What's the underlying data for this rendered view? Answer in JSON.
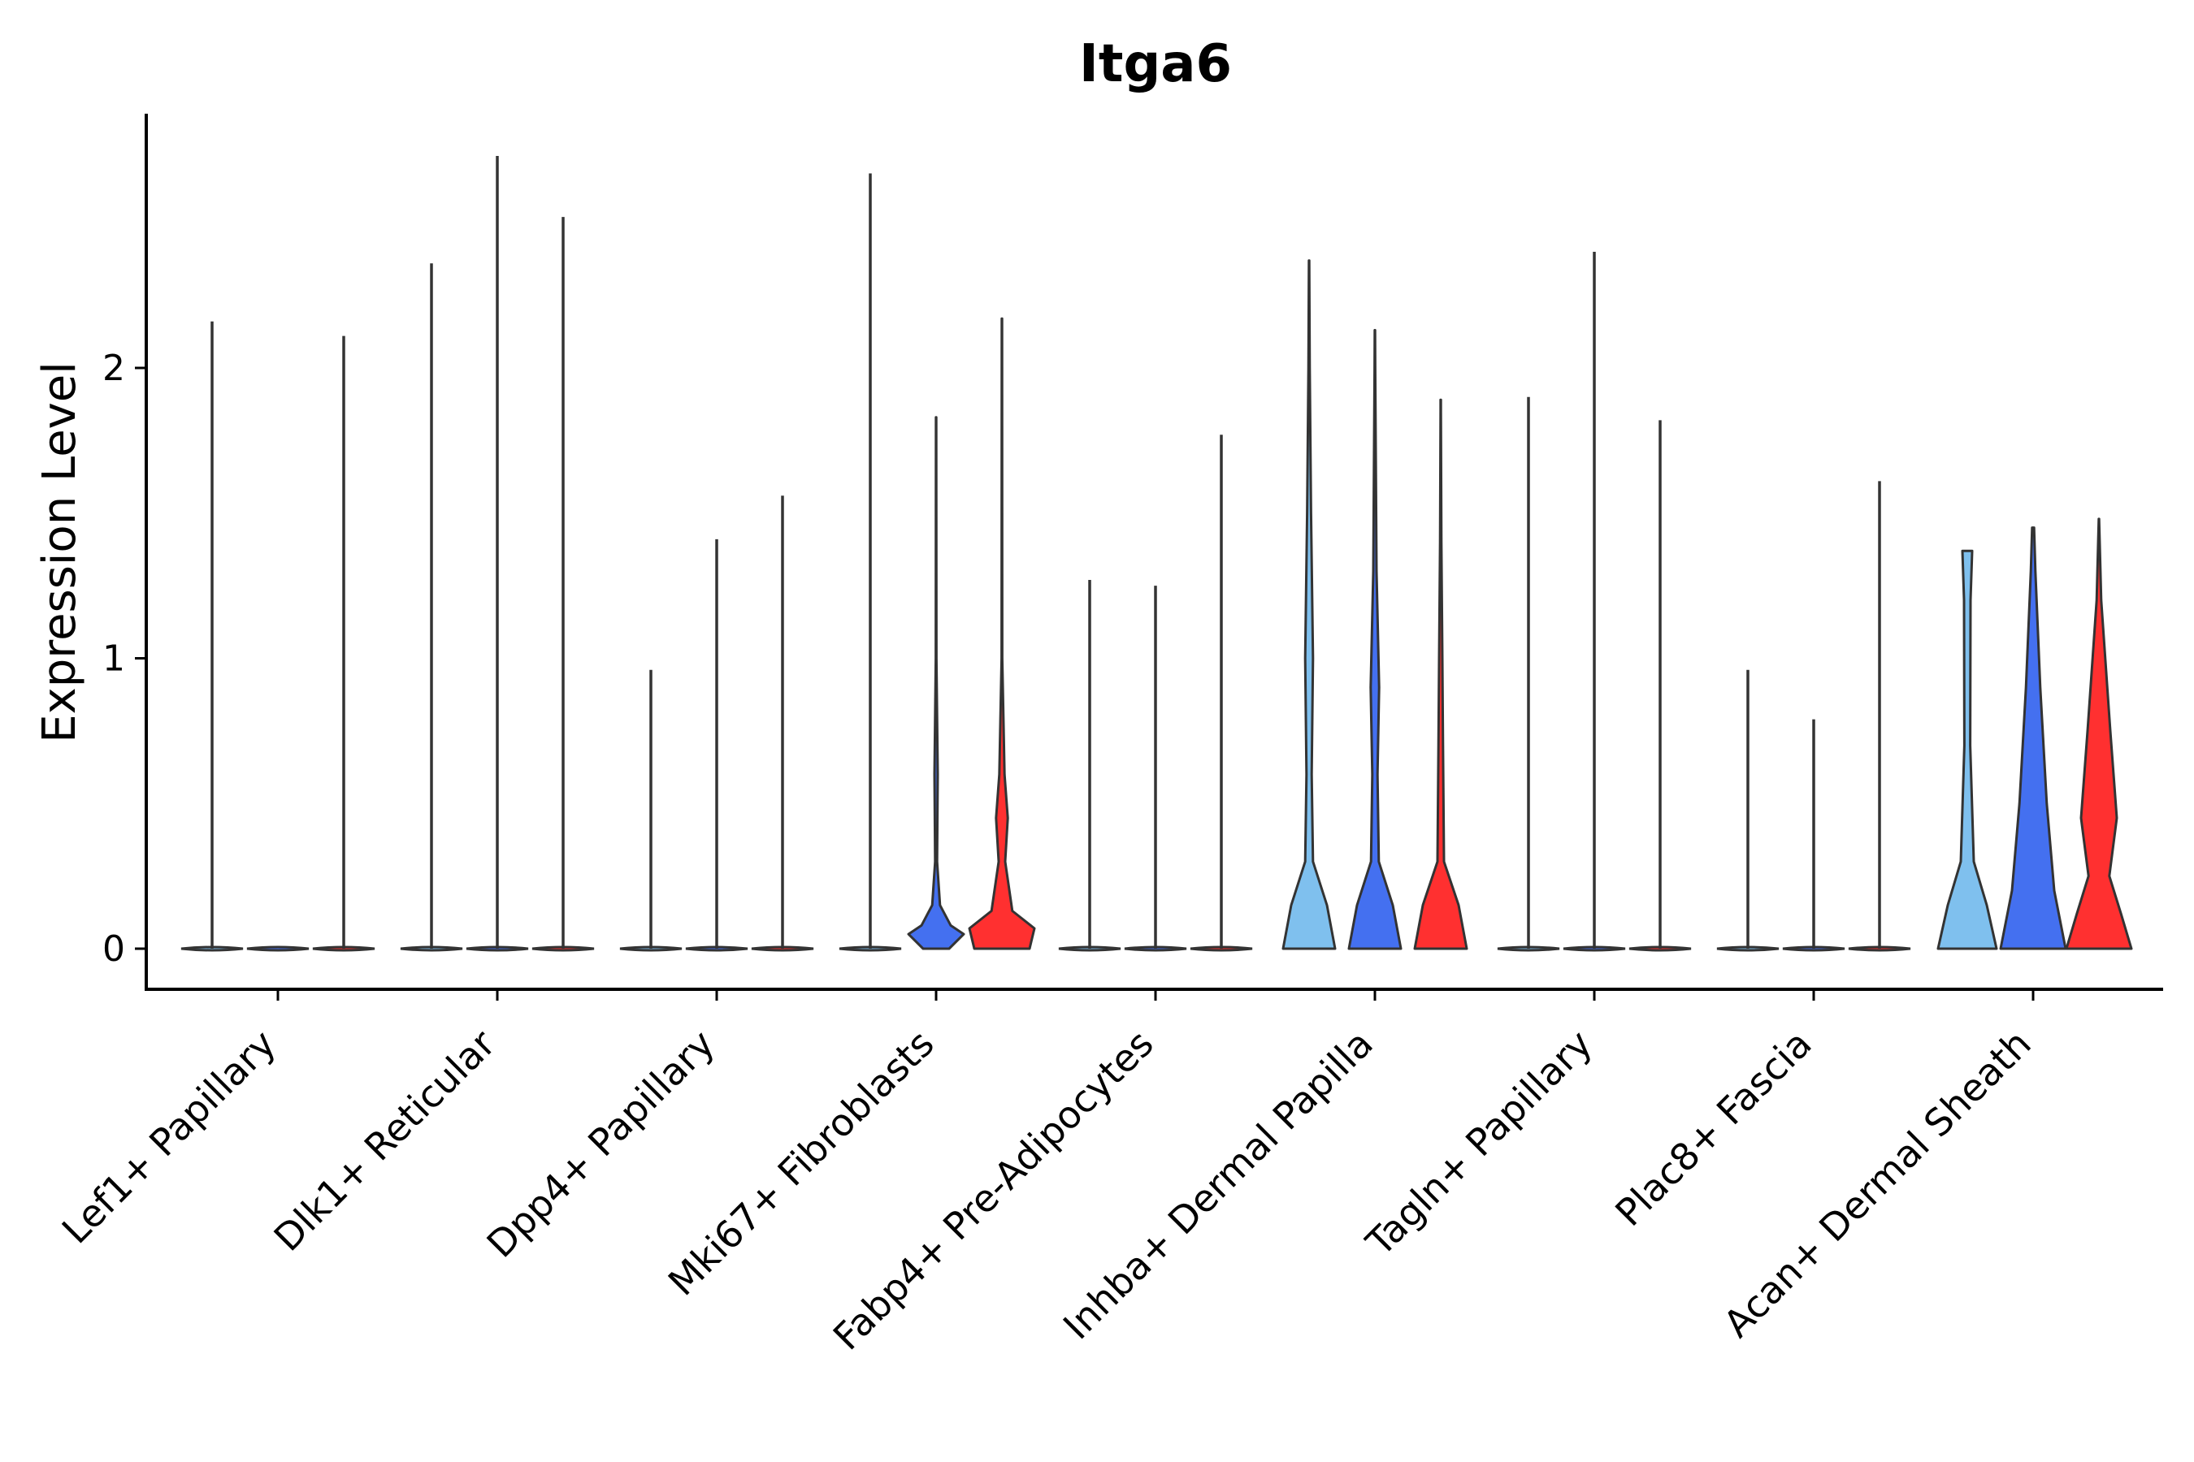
{
  "chart_data": {
    "type": "violin",
    "title": "Itga6",
    "xlabel": "",
    "ylabel": "Expression Level",
    "ylim": [
      -0.14,
      2.88
    ],
    "yticks": [
      0,
      1,
      2
    ],
    "categories": [
      "Lef1+ Papillary",
      "Dlk1+ Reticular",
      "Dpp4+ Papillary",
      "Mki67+ Fibroblasts",
      "Fabp4+ Pre-Adipocytes",
      "Inhba+ Dermal Papilla",
      "Tagln+ Papillary",
      "Plac8+ Fascia",
      "Acan+ Dermal Sheath"
    ],
    "groups": [
      {
        "name": "group-1",
        "color": "#7fc0ee"
      },
      {
        "name": "group-2",
        "color": "#4470f0"
      },
      {
        "name": "group-3",
        "color": "#ff3030"
      }
    ],
    "series": [
      {
        "category": "Lef1+ Papillary",
        "max": [
          2.16,
          0.0,
          2.11
        ]
      },
      {
        "category": "Dlk1+ Reticular",
        "max": [
          2.36,
          2.73,
          2.52
        ]
      },
      {
        "category": "Dpp4+ Papillary",
        "max": [
          0.96,
          1.41,
          1.56
        ]
      },
      {
        "category": "Mki67+ Fibroblasts",
        "max": [
          2.67,
          1.83,
          2.17
        ]
      },
      {
        "category": "Fabp4+ Pre-Adipocytes",
        "max": [
          1.27,
          1.25,
          1.77
        ]
      },
      {
        "category": "Inhba+ Dermal Papilla",
        "max": [
          2.37,
          2.13,
          1.89
        ]
      },
      {
        "category": "Tagln+ Papillary",
        "max": [
          1.9,
          2.4,
          1.82
        ]
      },
      {
        "category": "Plac8+ Fascia",
        "max": [
          0.96,
          0.79,
          1.61
        ]
      },
      {
        "category": "Acan+ Dermal Sheath",
        "max": [
          1.37,
          1.45,
          1.48
        ]
      }
    ],
    "violin_shapes": {
      "Mki67+ Fibroblasts": {
        "group-2": [
          [
            0,
            0.4
          ],
          [
            0.05,
            0.85
          ],
          [
            0.08,
            0.45
          ],
          [
            0.15,
            0.12
          ],
          [
            0.3,
            0.03
          ],
          [
            0.6,
            0.05
          ],
          [
            1.0,
            0.01
          ]
        ],
        "group-3": [
          [
            0,
            0.85
          ],
          [
            0.07,
            1.0
          ],
          [
            0.13,
            0.32
          ],
          [
            0.3,
            0.1
          ],
          [
            0.45,
            0.18
          ],
          [
            0.6,
            0.08
          ],
          [
            1.0,
            0.01
          ]
        ]
      },
      "Inhba+ Dermal Papilla": {
        "group-1": [
          [
            0,
            0.8
          ],
          [
            0.15,
            0.55
          ],
          [
            0.3,
            0.12
          ],
          [
            0.6,
            0.08
          ],
          [
            1.0,
            0.12
          ],
          [
            1.5,
            0.06
          ],
          [
            2.0,
            0.02
          ]
        ],
        "group-2": [
          [
            0,
            0.8
          ],
          [
            0.15,
            0.55
          ],
          [
            0.3,
            0.12
          ],
          [
            0.6,
            0.08
          ],
          [
            0.9,
            0.13
          ],
          [
            1.3,
            0.05
          ],
          [
            2.0,
            0.01
          ]
        ],
        "group-3": [
          [
            0,
            0.8
          ],
          [
            0.15,
            0.55
          ],
          [
            0.3,
            0.1
          ],
          [
            0.7,
            0.07
          ],
          [
            1.0,
            0.05
          ],
          [
            1.4,
            0.02
          ],
          [
            1.85,
            0.005
          ]
        ]
      },
      "Acan+ Dermal Sheath": {
        "group-1": [
          [
            0,
            0.9
          ],
          [
            0.15,
            0.6
          ],
          [
            0.3,
            0.2
          ],
          [
            0.7,
            0.09
          ],
          [
            1.2,
            0.1
          ],
          [
            1.37,
            0.15
          ]
        ],
        "group-2": [
          [
            0,
            1.0
          ],
          [
            0.2,
            0.65
          ],
          [
            0.5,
            0.42
          ],
          [
            0.9,
            0.22
          ],
          [
            1.3,
            0.07
          ],
          [
            1.45,
            0.03
          ]
        ],
        "group-3": [
          [
            0,
            1.0
          ],
          [
            0.12,
            0.68
          ],
          [
            0.25,
            0.32
          ],
          [
            0.45,
            0.55
          ],
          [
            0.75,
            0.35
          ],
          [
            1.2,
            0.07
          ],
          [
            1.48,
            0.005
          ]
        ]
      }
    }
  }
}
